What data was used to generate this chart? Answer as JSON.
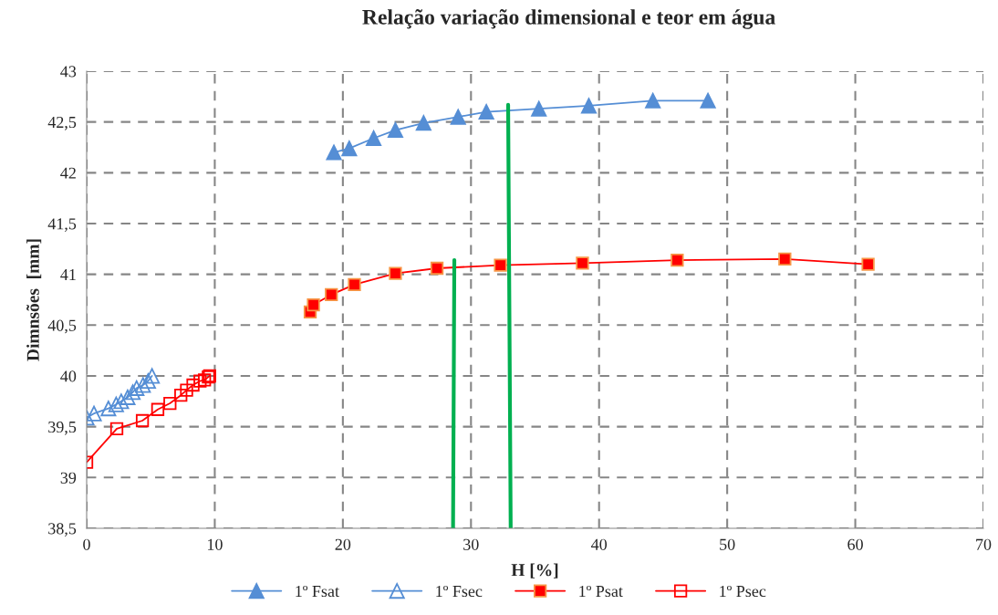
{
  "chart_data": {
    "type": "line",
    "title": "Relação variação dimensional e teor em água",
    "xlabel": "H [%]",
    "ylabel": "Dimnsões  [mm]",
    "xlim": [
      0,
      70
    ],
    "xticks": [
      0,
      10,
      20,
      30,
      40,
      50,
      60,
      70
    ],
    "ylim": [
      38.5,
      43
    ],
    "yticks": [
      {
        "value": 38.5,
        "label": "38,5"
      },
      {
        "value": 39,
        "label": "39"
      },
      {
        "value": 39.5,
        "label": "39,5"
      },
      {
        "value": 40,
        "label": "40"
      },
      {
        "value": 40.5,
        "label": "40,5"
      },
      {
        "value": 41,
        "label": "41"
      },
      {
        "value": 41.5,
        "label": "41,5"
      },
      {
        "value": 42,
        "label": "42"
      },
      {
        "value": 42.5,
        "label": "42,5"
      },
      {
        "value": 43,
        "label": "43"
      }
    ],
    "grid": true,
    "legend": "bottom",
    "line_style": "solid",
    "series": [
      {
        "name": "1º Fsat",
        "color": "#558ed5",
        "marker": "triangle",
        "x": [
          19.3,
          20.5,
          22.4,
          24.1,
          26.3,
          29.0,
          31.2,
          35.3,
          39.2,
          44.2,
          48.5
        ],
        "values": [
          42.2,
          42.24,
          42.34,
          42.42,
          42.49,
          42.55,
          42.6,
          42.63,
          42.66,
          42.71,
          42.71
        ]
      },
      {
        "name": "1º Fsec",
        "color": "#558ed5",
        "marker": "triangle",
        "x": [
          0,
          0.57,
          1.7,
          2.3,
          2.7,
          3.2,
          3.6,
          3.9,
          4.4,
          4.8,
          5.1
        ],
        "values": [
          39.59,
          39.63,
          39.68,
          39.72,
          39.75,
          39.79,
          39.84,
          39.88,
          39.91,
          39.95,
          40.0
        ]
      },
      {
        "name": "1º Psat",
        "color": "#ff0000",
        "marker": "square",
        "x": [
          17.45,
          17.7,
          19.1,
          20.9,
          24.1,
          27.35,
          32.3,
          38.7,
          46.1,
          54.5,
          61.0
        ],
        "values": [
          40.63,
          40.7,
          40.8,
          40.9,
          41.01,
          41.06,
          41.09,
          41.11,
          41.14,
          41.15,
          41.1
        ]
      },
      {
        "name": "1º Psec",
        "color": "#ff0000",
        "marker": "square",
        "x": [
          0,
          2.35,
          4.35,
          5.55,
          6.5,
          7.35,
          7.8,
          8.3,
          8.85,
          9.2,
          9.5,
          9.6
        ],
        "values": [
          39.15,
          39.48,
          39.56,
          39.67,
          39.73,
          39.81,
          39.86,
          39.91,
          39.95,
          39.96,
          39.99,
          40.0
        ]
      },
      {
        "color": "#00b050",
        "marker": "none",
        "x": [
          28.6,
          28.7
        ],
        "values": [
          38.5,
          41.14
        ]
      },
      {
        "color": "#00b050",
        "marker": "none",
        "x": [
          33.1,
          32.9
        ],
        "values": [
          38.5,
          42.67
        ]
      }
    ]
  }
}
